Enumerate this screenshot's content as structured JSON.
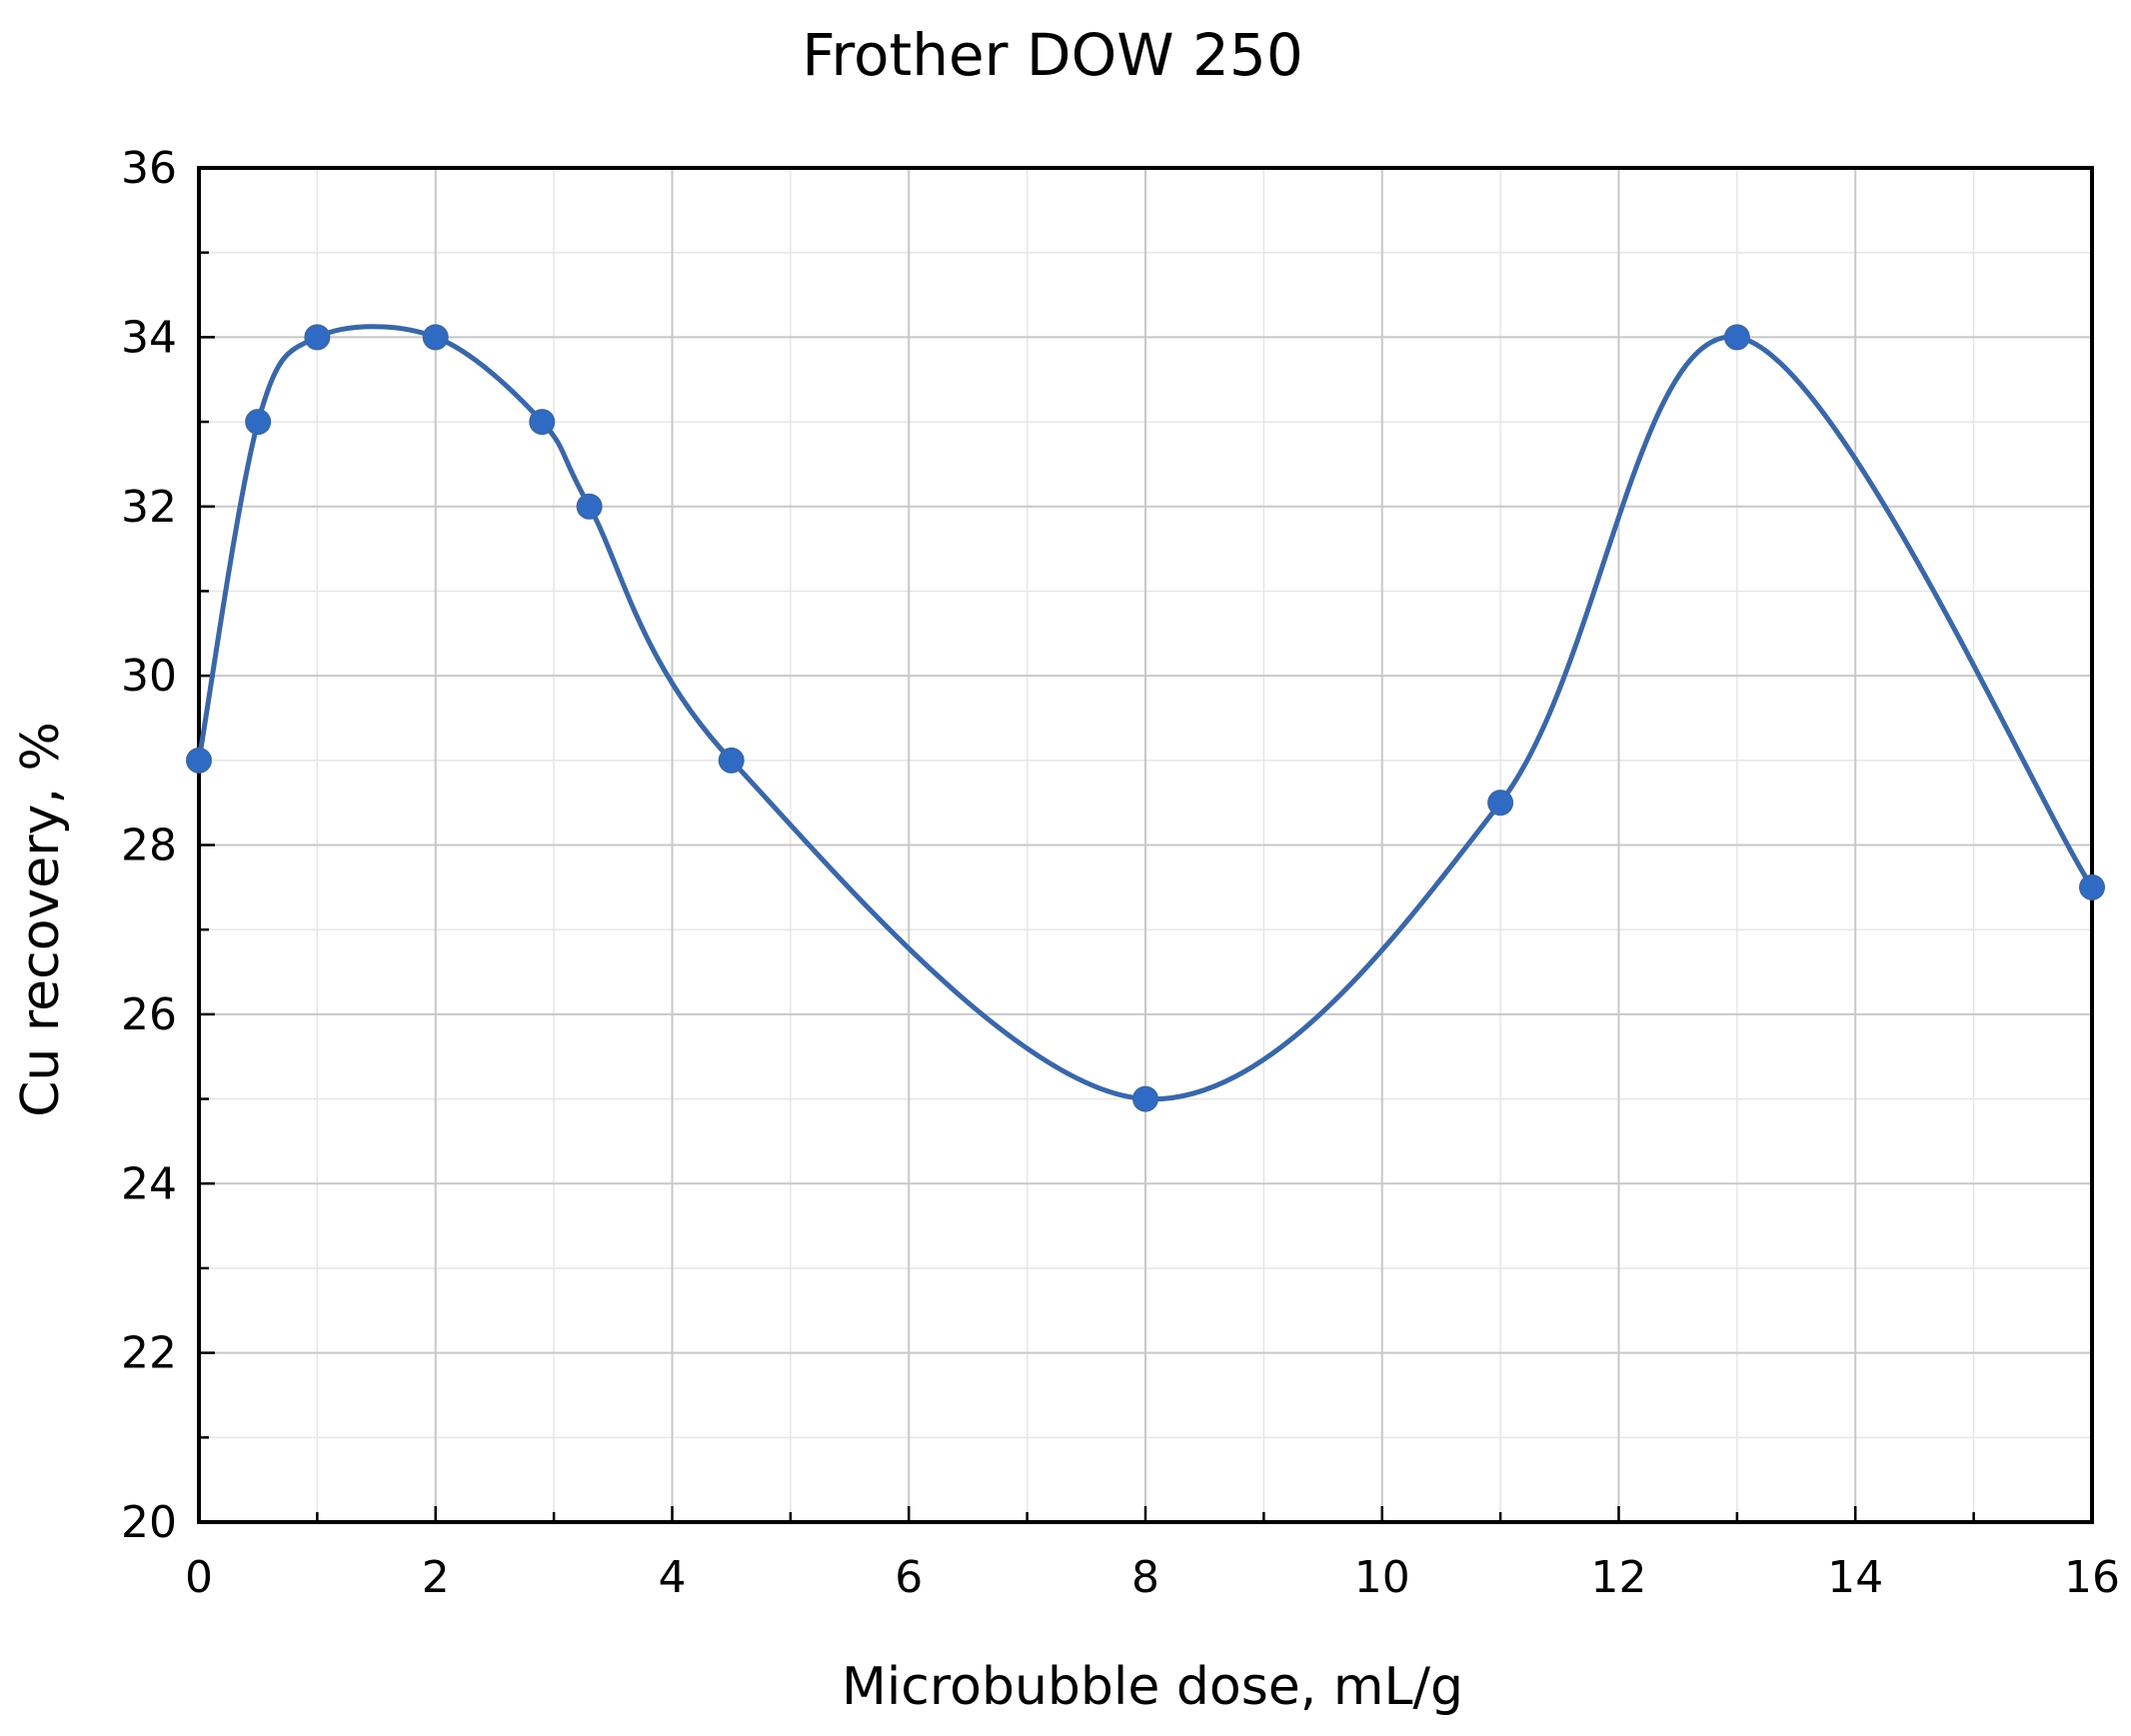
{
  "chart_data": {
    "type": "line",
    "title": "Frother DOW 250",
    "xlabel": "Microbubble dose, mL/g",
    "ylabel": "Cu recovery, %",
    "xlim": [
      0,
      16
    ],
    "ylim": [
      20,
      36
    ],
    "x_ticks": [
      0,
      2,
      4,
      6,
      8,
      10,
      12,
      14,
      16
    ],
    "y_ticks": [
      20,
      22,
      24,
      26,
      28,
      30,
      32,
      34,
      36
    ],
    "x_minor_step": 1,
    "y_minor_step": 1,
    "grid": true,
    "legend": "none",
    "smooth": true,
    "series": [
      {
        "color": "#3a67a8",
        "marker_color": "#2f6bc4",
        "x": [
          0,
          0.5,
          1,
          2,
          2.9,
          3.3,
          4.5,
          8,
          11,
          13,
          16
        ],
        "y": [
          29,
          33,
          34,
          34,
          33,
          32,
          29,
          25,
          28.5,
          34,
          27.5
        ]
      }
    ]
  }
}
